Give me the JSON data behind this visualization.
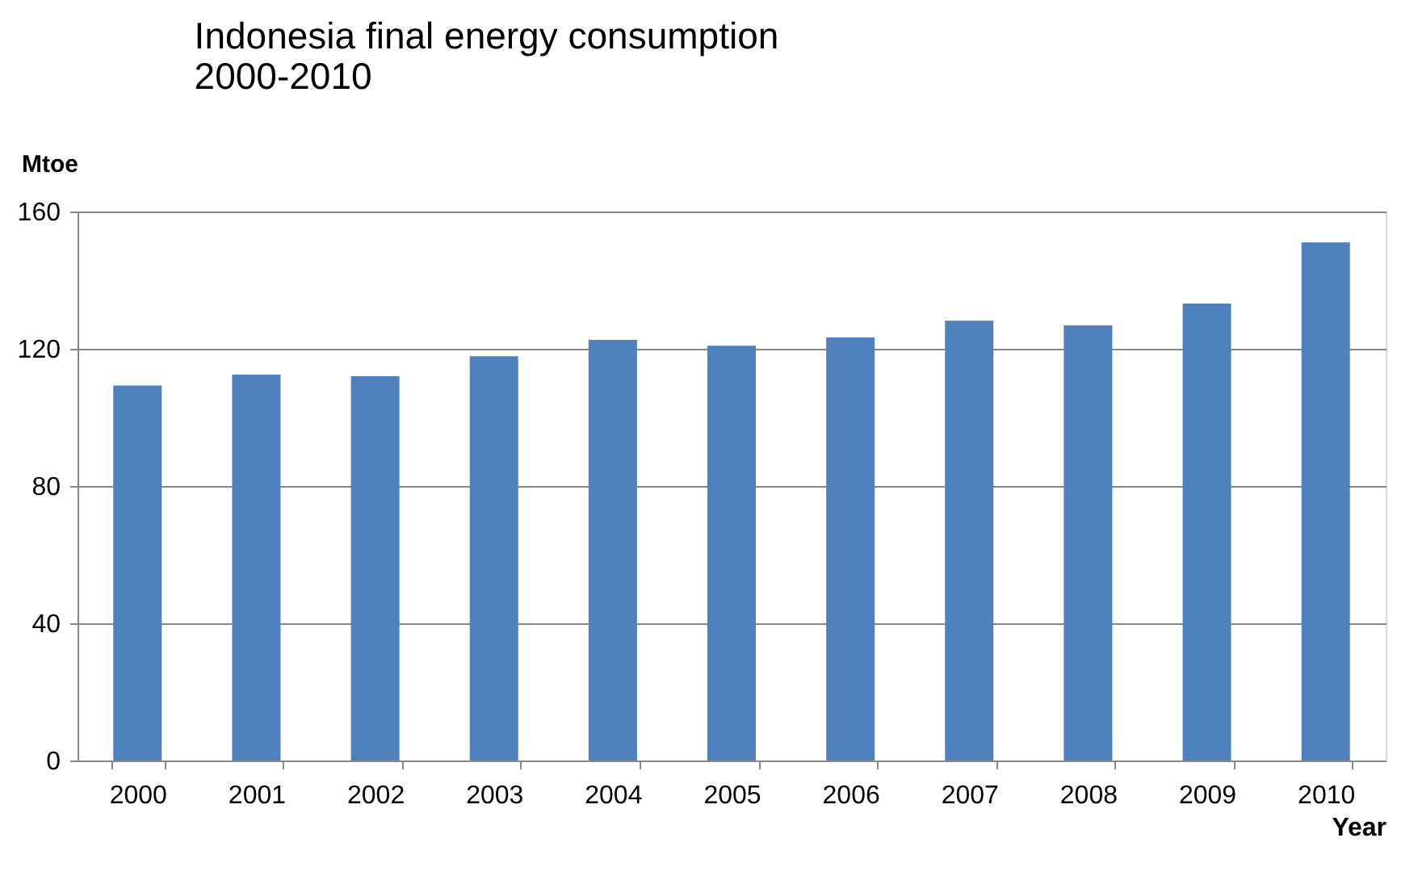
{
  "chart_data": {
    "type": "bar",
    "title": [
      "Indonesia final energy consumption",
      "2000-2010"
    ],
    "xlabel": "Year",
    "ylabel": "Mtoe",
    "categories": [
      "2000",
      "2001",
      "2002",
      "2003",
      "2004",
      "2005",
      "2006",
      "2007",
      "2008",
      "2009",
      "2010"
    ],
    "values": [
      109.3,
      112.5,
      112.0,
      117.8,
      122.6,
      120.9,
      123.3,
      128.2,
      126.8,
      133.2,
      151.0
    ],
    "color": "#4f81bd",
    "ylim": [
      0,
      160
    ],
    "yticks": [
      0,
      40,
      80,
      120,
      160
    ],
    "grid": "y"
  }
}
